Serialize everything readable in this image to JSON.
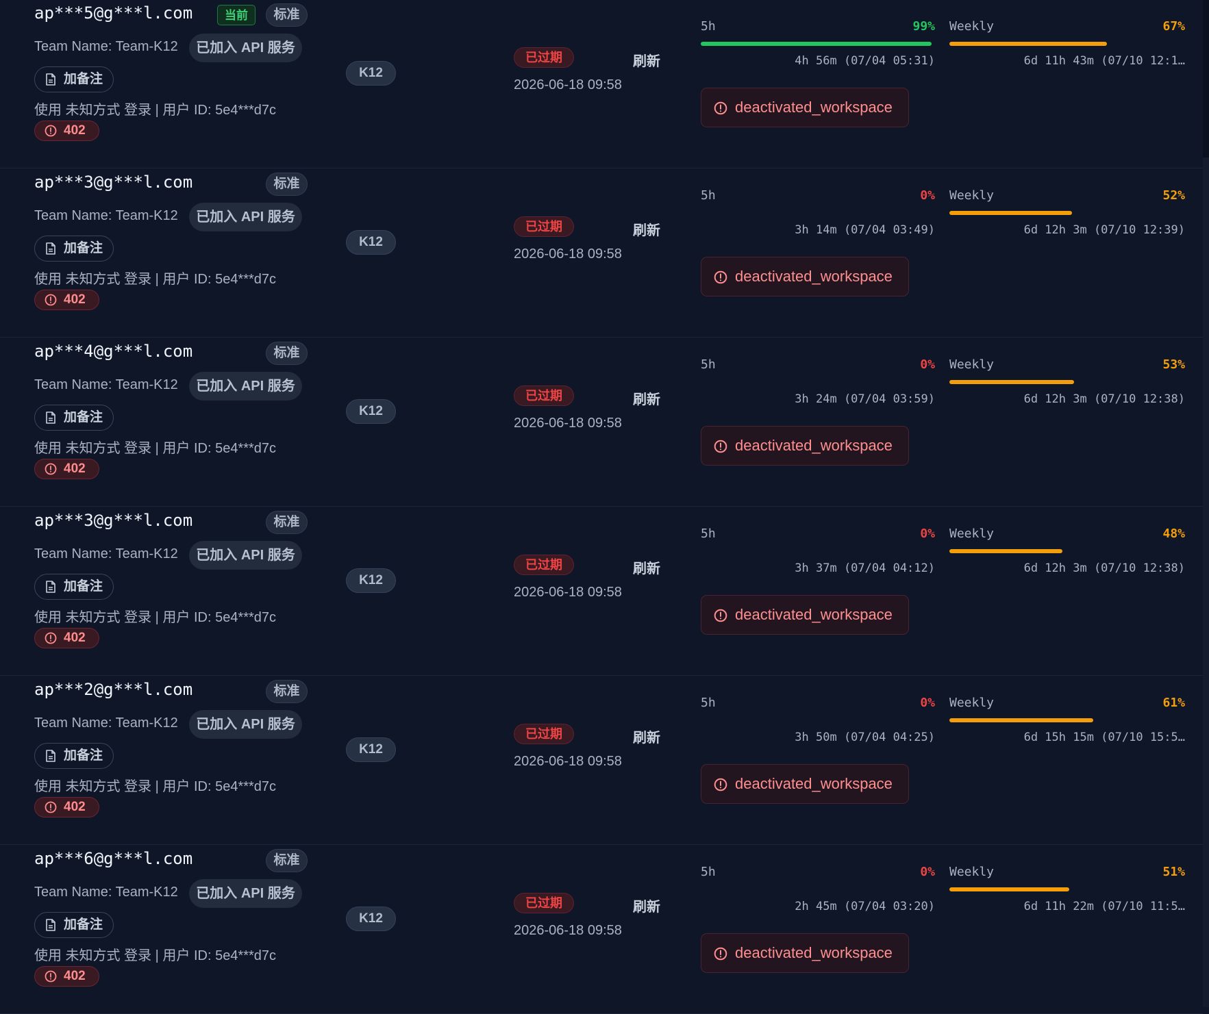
{
  "labels": {
    "current": "当前",
    "standard": "标准",
    "team_name_label": "Team Name:",
    "api_joined": "已加入 API 服务",
    "add_note": "加备注",
    "expired": "已过期",
    "refresh": "刷新",
    "window_5h": "5h",
    "window_weekly": "Weekly"
  },
  "colors": {
    "green": "#22c55e",
    "orange": "#f59e0b",
    "red": "#ef4444"
  },
  "rows": [
    {
      "email": "ap***5@g***l.com",
      "is_current": true,
      "team_name": "Team-K12",
      "login_info": "使用 未知方式 登录 | 用户 ID: 5e4***d7c",
      "error_code": "402",
      "plan": "K12",
      "expire_date": "2026-06-18 09:58",
      "usage_5h": {
        "percent_text": "99%",
        "percent": 99,
        "reset": "4h 56m (07/04 05:31)"
      },
      "usage_weekly": {
        "percent_text": "67%",
        "percent": 67,
        "reset": "6d 11h 43m (07/10 12:1…"
      },
      "error_message": "deactivated_workspace"
    },
    {
      "email": "ap***3@g***l.com",
      "is_current": false,
      "team_name": "Team-K12",
      "login_info": "使用 未知方式 登录 | 用户 ID: 5e4***d7c",
      "error_code": "402",
      "plan": "K12",
      "expire_date": "2026-06-18 09:58",
      "usage_5h": {
        "percent_text": "0%",
        "percent": 0,
        "reset": "3h 14m (07/04 03:49)"
      },
      "usage_weekly": {
        "percent_text": "52%",
        "percent": 52,
        "reset": "6d 12h 3m (07/10 12:39)"
      },
      "error_message": "deactivated_workspace"
    },
    {
      "email": "ap***4@g***l.com",
      "is_current": false,
      "team_name": "Team-K12",
      "login_info": "使用 未知方式 登录 | 用户 ID: 5e4***d7c",
      "error_code": "402",
      "plan": "K12",
      "expire_date": "2026-06-18 09:58",
      "usage_5h": {
        "percent_text": "0%",
        "percent": 0,
        "reset": "3h 24m (07/04 03:59)"
      },
      "usage_weekly": {
        "percent_text": "53%",
        "percent": 53,
        "reset": "6d 12h 3m (07/10 12:38)"
      },
      "error_message": "deactivated_workspace"
    },
    {
      "email": "ap***3@g***l.com",
      "is_current": false,
      "team_name": "Team-K12",
      "login_info": "使用 未知方式 登录 | 用户 ID: 5e4***d7c",
      "error_code": "402",
      "plan": "K12",
      "expire_date": "2026-06-18 09:58",
      "usage_5h": {
        "percent_text": "0%",
        "percent": 0,
        "reset": "3h 37m (07/04 04:12)"
      },
      "usage_weekly": {
        "percent_text": "48%",
        "percent": 48,
        "reset": "6d 12h 3m (07/10 12:38)"
      },
      "error_message": "deactivated_workspace"
    },
    {
      "email": "ap***2@g***l.com",
      "is_current": false,
      "team_name": "Team-K12",
      "login_info": "使用 未知方式 登录 | 用户 ID: 5e4***d7c",
      "error_code": "402",
      "plan": "K12",
      "expire_date": "2026-06-18 09:58",
      "usage_5h": {
        "percent_text": "0%",
        "percent": 0,
        "reset": "3h 50m (07/04 04:25)"
      },
      "usage_weekly": {
        "percent_text": "61%",
        "percent": 61,
        "reset": "6d 15h 15m (07/10 15:5…"
      },
      "error_message": "deactivated_workspace"
    },
    {
      "email": "ap***6@g***l.com",
      "is_current": false,
      "team_name": "Team-K12",
      "login_info": "使用 未知方式 登录 | 用户 ID: 5e4***d7c",
      "error_code": "402",
      "plan": "K12",
      "expire_date": "2026-06-18 09:58",
      "usage_5h": {
        "percent_text": "0%",
        "percent": 0,
        "reset": "2h 45m (07/04 03:20)"
      },
      "usage_weekly": {
        "percent_text": "51%",
        "percent": 51,
        "reset": "6d 11h 22m (07/10 11:5…"
      },
      "error_message": "deactivated_workspace"
    }
  ]
}
